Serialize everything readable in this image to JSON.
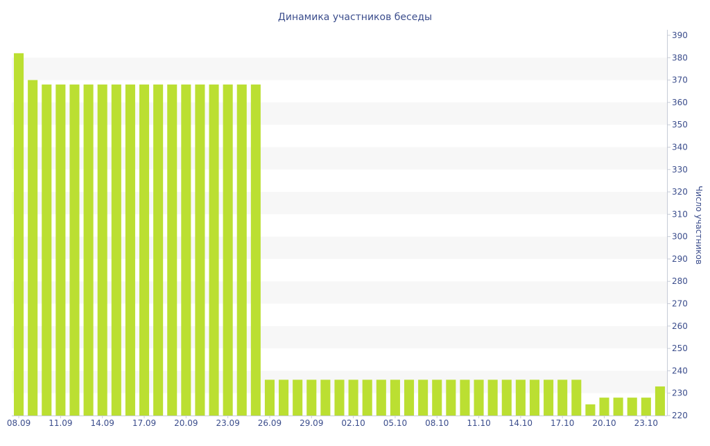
{
  "chart_data": {
    "type": "bar",
    "title": "Динамика участников беседы",
    "xlabel": "",
    "ylabel": "Число участников",
    "ylim": [
      220,
      390
    ],
    "yticks": [
      220,
      230,
      240,
      250,
      260,
      270,
      280,
      290,
      300,
      310,
      320,
      330,
      340,
      350,
      360,
      370,
      380,
      390
    ],
    "y_axis_side": "right",
    "grid": "alternating horizontal bands",
    "legend": "none",
    "bar_color": "#bbdf32",
    "band_color": "#f7f7f7",
    "text_color": "#3b4d8c",
    "categories": [
      "08.09",
      "09.09",
      "10.09",
      "11.09",
      "12.09",
      "13.09",
      "14.09",
      "15.09",
      "16.09",
      "17.09",
      "18.09",
      "19.09",
      "20.09",
      "21.09",
      "22.09",
      "23.09",
      "24.09",
      "25.09",
      "26.09",
      "27.09",
      "28.09",
      "29.09",
      "30.09",
      "01.10",
      "02.10",
      "03.10",
      "04.10",
      "05.10",
      "06.10",
      "07.10",
      "08.10",
      "09.10",
      "10.10",
      "11.10",
      "12.10",
      "13.10",
      "14.10",
      "15.10",
      "16.10",
      "17.10",
      "18.10",
      "19.10",
      "20.10",
      "21.10",
      "22.10",
      "23.10",
      "24.10"
    ],
    "tick_labels": [
      "08.09",
      "11.09",
      "14.09",
      "17.09",
      "20.09",
      "23.09",
      "26.09",
      "29.09",
      "02.10",
      "05.10",
      "08.10",
      "11.10",
      "14.10",
      "17.10",
      "20.10",
      "23.10"
    ],
    "values": [
      382,
      370,
      368,
      368,
      368,
      368,
      368,
      368,
      368,
      368,
      368,
      368,
      368,
      368,
      368,
      368,
      368,
      368,
      236,
      236,
      236,
      236,
      236,
      236,
      236,
      236,
      236,
      236,
      236,
      236,
      236,
      236,
      236,
      236,
      236,
      236,
      236,
      236,
      236,
      236,
      236,
      225,
      228,
      228,
      228,
      228,
      233
    ]
  }
}
